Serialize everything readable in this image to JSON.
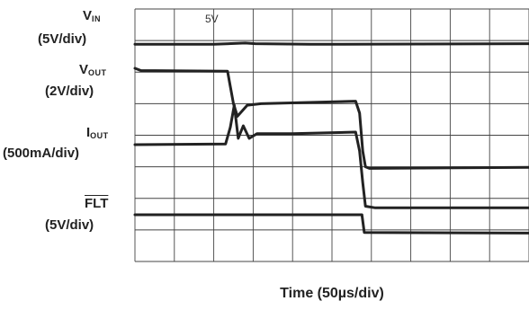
{
  "labels": {
    "vin_main": "V",
    "vin_sub": "IN",
    "vin_scale": "(5V/div)",
    "vout_main": "V",
    "vout_sub": "OUT",
    "vout_scale": "(2V/div)",
    "iout_main": "I",
    "iout_sub": "OUT",
    "iout_scale": "(500mA/div)",
    "flt_main": "FLT",
    "flt_scale": "(5V/div)",
    "grid_tag": "5V"
  },
  "chart_data": {
    "type": "line",
    "xlabel": "Time (50µs/div)",
    "grid": true,
    "xlim": [
      0,
      10
    ],
    "ylim": [
      0,
      8
    ],
    "series": [
      {
        "name": "VIN",
        "color": "#222222",
        "points": [
          [
            0,
            6.88
          ],
          [
            2.0,
            6.88
          ],
          [
            2.8,
            6.92
          ],
          [
            3.05,
            6.9
          ],
          [
            4.45,
            6.88
          ],
          [
            10,
            6.9
          ]
        ]
      },
      {
        "name": "VOUT",
        "color": "#222222",
        "points": [
          [
            0,
            6.12
          ],
          [
            0.15,
            6.05
          ],
          [
            2.35,
            6.03
          ],
          [
            2.5,
            5.0
          ],
          [
            2.6,
            4.6
          ],
          [
            2.85,
            4.95
          ],
          [
            3.2,
            5.0
          ],
          [
            5.6,
            5.08
          ],
          [
            5.7,
            4.7
          ],
          [
            5.78,
            3.5
          ],
          [
            5.85,
            3.0
          ],
          [
            5.95,
            2.95
          ],
          [
            10,
            2.98
          ]
        ]
      },
      {
        "name": "IOUT",
        "color": "#222222",
        "points": [
          [
            0,
            3.7
          ],
          [
            2.3,
            3.72
          ],
          [
            2.42,
            4.25
          ],
          [
            2.52,
            4.95
          ],
          [
            2.62,
            3.9
          ],
          [
            2.75,
            4.3
          ],
          [
            2.9,
            3.9
          ],
          [
            3.1,
            4.05
          ],
          [
            4.0,
            4.05
          ],
          [
            5.6,
            4.1
          ],
          [
            5.7,
            3.5
          ],
          [
            5.78,
            2.5
          ],
          [
            5.85,
            1.75
          ],
          [
            6.1,
            1.7
          ],
          [
            10,
            1.7
          ]
        ]
      },
      {
        "name": "FLT",
        "color": "#222222",
        "points": [
          [
            0,
            1.48
          ],
          [
            5.76,
            1.48
          ],
          [
            5.82,
            0.92
          ],
          [
            10,
            0.9
          ]
        ]
      }
    ]
  }
}
